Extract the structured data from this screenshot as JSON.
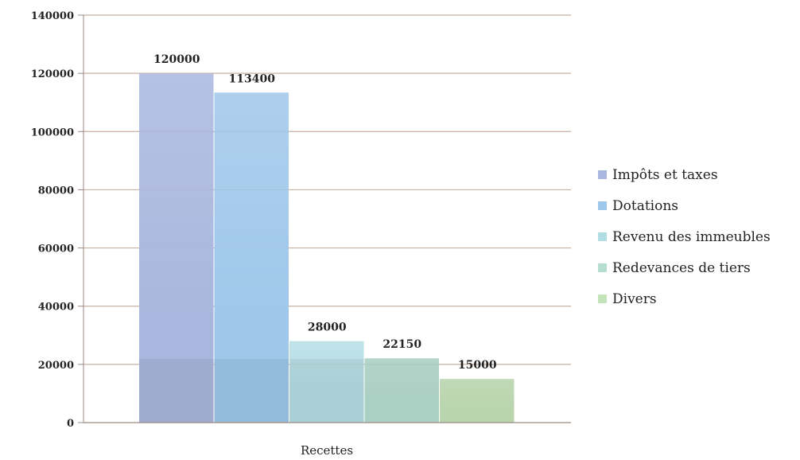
{
  "chart_data": {
    "type": "bar",
    "title": "",
    "xlabel": "",
    "ylabel": "",
    "categories": [
      "Recettes"
    ],
    "series": [
      {
        "name": "Impôts et taxes",
        "values": [
          120000
        ],
        "color": "#a9b7de"
      },
      {
        "name": "Dotations",
        "values": [
          113400
        ],
        "color": "#9fc7ea"
      },
      {
        "name": "Revenu des immeubles",
        "values": [
          28000
        ],
        "color": "#b3dde4"
      },
      {
        "name": "Redevances de tiers",
        "values": [
          22150
        ],
        "color": "#b5ddd0"
      },
      {
        "name": "Divers",
        "values": [
          15000
        ],
        "color": "#c4e3b8"
      }
    ],
    "ylim": [
      0,
      140000
    ],
    "yticks": [
      0,
      20000,
      40000,
      60000,
      80000,
      100000,
      120000,
      140000
    ],
    "ytick_labels": [
      "0",
      "20000",
      "40000",
      "60000",
      "80000",
      "100000",
      "120000",
      "140000"
    ],
    "data_labels": [
      "120000",
      "113400",
      "28000",
      "22150",
      "15000"
    ],
    "grid": true,
    "legend_position": "right"
  }
}
